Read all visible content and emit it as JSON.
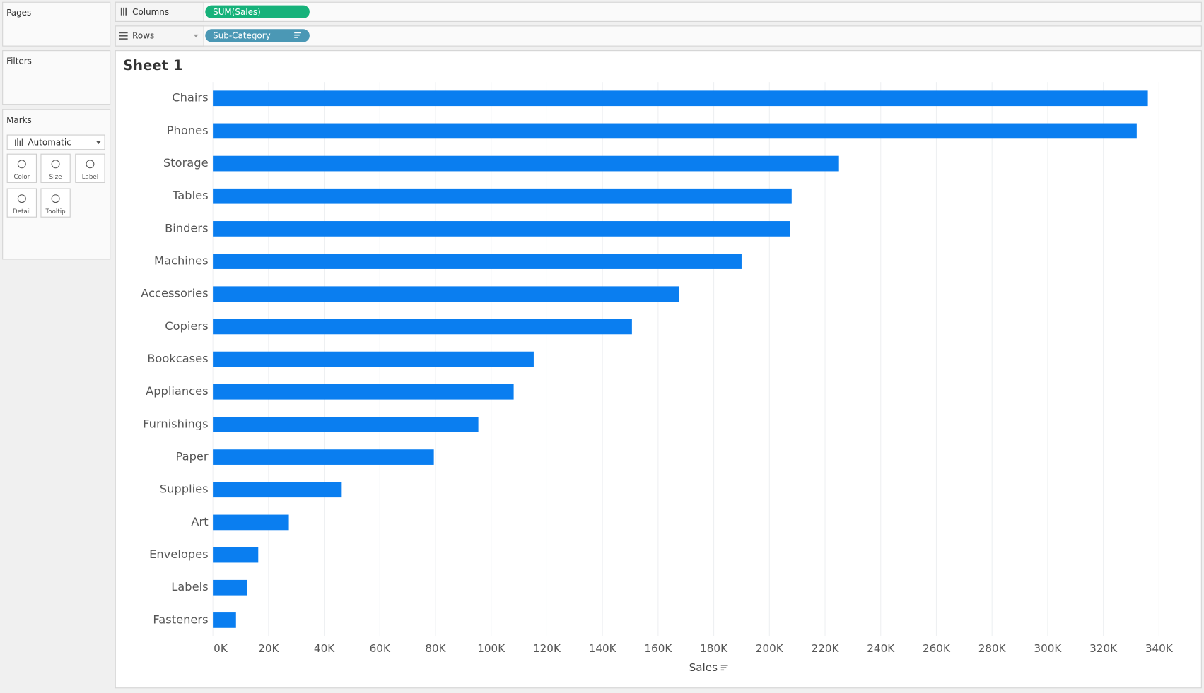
{
  "ui": {
    "pages": "Pages",
    "filters": "Filters",
    "marks": {
      "title": "Marks",
      "type": "Automatic",
      "buttons": [
        "Color",
        "Size",
        "Label",
        "Detail",
        "Tooltip"
      ]
    },
    "shelves": {
      "columns": {
        "label": "Columns",
        "pill": "SUM(Sales)"
      },
      "rows": {
        "label": "Rows",
        "pill": "Sub-Category"
      }
    }
  },
  "chart_data": {
    "type": "hbar",
    "title": "Sheet 1",
    "x_label": "Sales",
    "color": "#0a7ef0",
    "grid": true,
    "categories": [
      "Chairs",
      "Phones",
      "Storage",
      "Tables",
      "Binders",
      "Machines",
      "Accessories",
      "Copiers",
      "Bookcases",
      "Appliances",
      "Furnishings",
      "Paper",
      "Supplies",
      "Art",
      "Envelopes",
      "Labels",
      "Fasteners"
    ],
    "values": [
      336000,
      332000,
      225000,
      208000,
      207500,
      190000,
      167400,
      150600,
      115300,
      108100,
      95400,
      79400,
      46300,
      27300,
      16300,
      12400,
      8300
    ],
    "xlim": [
      0,
      350000
    ],
    "xticks": [
      {
        "value": 0,
        "label": "0K"
      },
      {
        "value": 20000,
        "label": "20K"
      },
      {
        "value": 40000,
        "label": "40K"
      },
      {
        "value": 60000,
        "label": "60K"
      },
      {
        "value": 80000,
        "label": "80K"
      },
      {
        "value": 100000,
        "label": "100K"
      },
      {
        "value": 120000,
        "label": "120K"
      },
      {
        "value": 140000,
        "label": "140K"
      },
      {
        "value": 160000,
        "label": "160K"
      },
      {
        "value": 180000,
        "label": "180K"
      },
      {
        "value": 200000,
        "label": "200K"
      },
      {
        "value": 220000,
        "label": "220K"
      },
      {
        "value": 240000,
        "label": "240K"
      },
      {
        "value": 260000,
        "label": "260K"
      },
      {
        "value": 280000,
        "label": "280K"
      },
      {
        "value": 300000,
        "label": "300K"
      },
      {
        "value": 320000,
        "label": "320K"
      },
      {
        "value": 340000,
        "label": "340K"
      }
    ]
  }
}
